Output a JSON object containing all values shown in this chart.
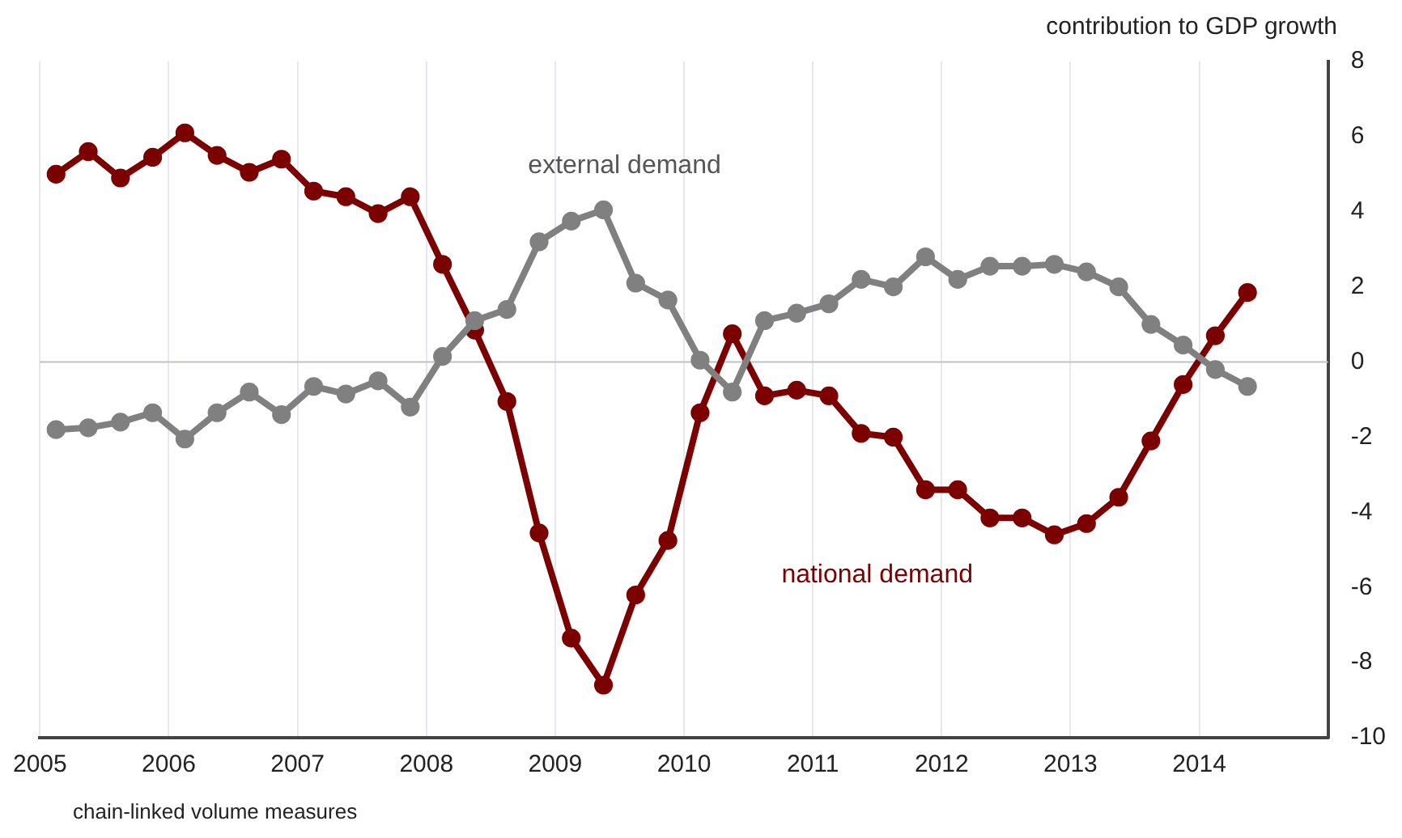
{
  "chart_data": {
    "type": "line",
    "ylabel": "contribution to GDP growth",
    "annotations": [
      "chain-linked volume measures"
    ],
    "x": [
      2005.125,
      2005.375,
      2005.625,
      2005.875,
      2006.125,
      2006.375,
      2006.625,
      2006.875,
      2007.125,
      2007.375,
      2007.625,
      2007.875,
      2008.125,
      2008.375,
      2008.625,
      2008.875,
      2009.125,
      2009.375,
      2009.625,
      2009.875,
      2010.125,
      2010.375,
      2010.625,
      2010.875,
      2011.125,
      2011.375,
      2011.625,
      2011.875,
      2012.125,
      2012.375,
      2012.625,
      2012.875,
      2013.125,
      2013.375,
      2013.625,
      2013.875,
      2014.125,
      2014.375
    ],
    "series": [
      {
        "name": "external demand",
        "color": "#808080",
        "values": [
          -1.8,
          -1.75,
          -1.6,
          -1.35,
          -2.05,
          -1.35,
          -0.8,
          -1.4,
          -0.65,
          -0.85,
          -0.5,
          -1.2,
          0.15,
          1.1,
          1.4,
          3.2,
          3.75,
          4.05,
          2.1,
          1.65,
          0.05,
          -0.8,
          1.1,
          1.3,
          1.55,
          2.2,
          2.0,
          2.8,
          2.2,
          2.55,
          2.55,
          2.6,
          2.4,
          2.0,
          1.0,
          0.45,
          -0.2,
          -0.65
        ]
      },
      {
        "name": "national demand",
        "color": "#7b0000",
        "values": [
          5.0,
          5.6,
          4.9,
          5.45,
          6.1,
          5.5,
          5.05,
          5.4,
          4.55,
          4.4,
          3.95,
          4.4,
          2.6,
          0.85,
          -1.05,
          -4.55,
          -7.35,
          -8.6,
          -6.2,
          -4.75,
          -1.35,
          0.75,
          -0.9,
          -0.75,
          -0.9,
          -1.9,
          -2.0,
          -3.4,
          -3.4,
          -4.15,
          -4.15,
          -4.6,
          -4.3,
          -3.6,
          -2.1,
          -0.6,
          0.7,
          1.85
        ]
      }
    ],
    "xlim": [
      2005,
      2015
    ],
    "xticks": [
      2005,
      2006,
      2007,
      2008,
      2009,
      2010,
      2011,
      2012,
      2013,
      2014,
      {
        "value": 2015,
        "label": null
      }
    ],
    "ylim": [
      -10,
      8
    ],
    "yticks": [
      -10,
      -8,
      -6,
      -4,
      -2,
      0,
      2,
      4,
      6,
      8
    ],
    "ref_lines": [
      {
        "axis": "y",
        "value": 0,
        "color": "#c0c0c8"
      }
    ],
    "grid": "x",
    "legend": false,
    "marker": "circle",
    "line_style": "solid"
  }
}
